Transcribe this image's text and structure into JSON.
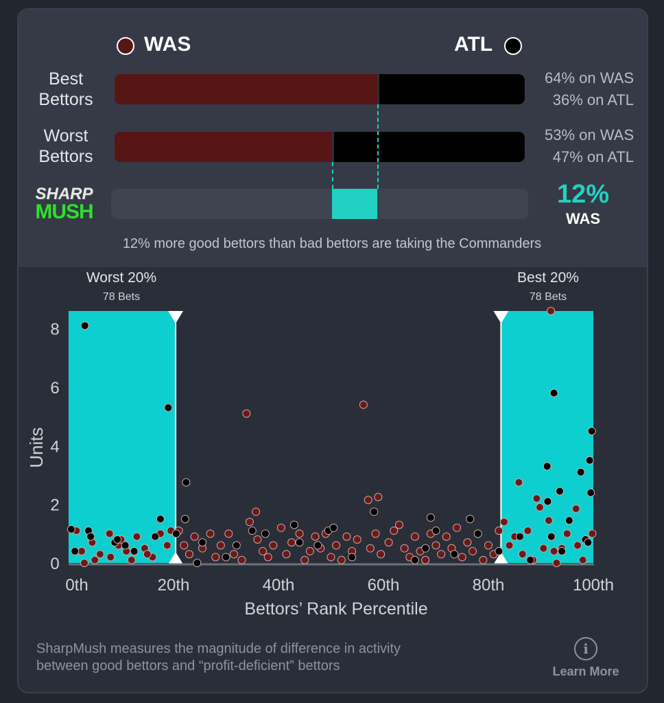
{
  "header": {
    "team_left": "WAS",
    "team_right": "ATL",
    "team_left_color": "#581516",
    "team_right_color": "#000000"
  },
  "rows": [
    {
      "label_line1": "Best",
      "label_line2": "Bettors",
      "left_pct": 64,
      "right_pct": 36,
      "left_text": "64% on WAS",
      "right_text": "36% on ATL"
    },
    {
      "label_line1": "Worst",
      "label_line2": "Bettors",
      "left_pct": 53,
      "right_pct": 47,
      "left_text": "53% on WAS",
      "right_text": "47% on ATL"
    }
  ],
  "sharpmush": {
    "logo_line1": "SHARP",
    "logo_line2": "MUSH",
    "value": "12%",
    "team": "WAS",
    "diff": 12,
    "accent": "#22d1c2"
  },
  "summary": "12% more good bettors than bad bettors are taking the Commanders",
  "chart_data": {
    "type": "scatter",
    "xlabel": "Bettors’ Rank Percentile",
    "ylabel": "Units",
    "xlim": [
      0,
      100
    ],
    "ylim": [
      0,
      8.6
    ],
    "xticks": [
      {
        "v": 0,
        "label": "0th"
      },
      {
        "v": 20,
        "label": "20th"
      },
      {
        "v": 40,
        "label": "40th"
      },
      {
        "v": 60,
        "label": "60th"
      },
      {
        "v": 80,
        "label": "80th"
      },
      {
        "v": 100,
        "label": "100th"
      }
    ],
    "yticks": [
      {
        "v": 0,
        "label": "0"
      },
      {
        "v": 2,
        "label": "2"
      },
      {
        "v": 4,
        "label": "4"
      },
      {
        "v": 6,
        "label": "6"
      },
      {
        "v": 8,
        "label": "8"
      }
    ],
    "bands": [
      {
        "from": 0,
        "to": 20.4,
        "title": "Worst 20%",
        "subtitle": "78 Bets"
      },
      {
        "from": 82.4,
        "to": 100,
        "title": "Best 20%",
        "subtitle": "78 Bets"
      }
    ],
    "series": [
      {
        "name": "WAS",
        "color": "#6b1a1a",
        "points": [
          [
            4.5,
            0.7
          ],
          [
            6,
            0.3
          ],
          [
            7.8,
            1.0
          ],
          [
            9.5,
            0.6
          ],
          [
            11,
            0.4
          ],
          [
            13,
            0.9
          ],
          [
            14.5,
            0.5
          ],
          [
            16,
            0.2
          ],
          [
            17.5,
            1.0
          ],
          [
            18.8,
            0.6
          ],
          [
            19.5,
            1.1
          ],
          [
            1.5,
            1.1
          ],
          [
            2.5,
            0.4
          ],
          [
            5,
            0.1
          ],
          [
            8,
            0.2
          ],
          [
            12,
            0.1
          ],
          [
            15,
            0.3
          ],
          [
            3,
            0.0
          ],
          [
            10,
            0.8
          ],
          [
            21,
            1.1
          ],
          [
            22,
            0.6
          ],
          [
            23,
            0.3
          ],
          [
            24,
            0.9
          ],
          [
            25.5,
            0.5
          ],
          [
            27,
            1.0
          ],
          [
            28,
            0.2
          ],
          [
            29,
            0.6
          ],
          [
            30.5,
            1.0
          ],
          [
            31.5,
            0.3
          ],
          [
            33,
            0.1
          ],
          [
            33.9,
            5.1
          ],
          [
            34.5,
            1.4
          ],
          [
            35.7,
            1.75
          ],
          [
            36,
            0.8
          ],
          [
            37,
            0.4
          ],
          [
            38,
            0.2
          ],
          [
            39,
            0.6
          ],
          [
            40.5,
            1.2
          ],
          [
            41.5,
            0.3
          ],
          [
            42.5,
            0.7
          ],
          [
            44,
            1.0
          ],
          [
            45,
            0.1
          ],
          [
            46,
            0.4
          ],
          [
            47,
            0.9
          ],
          [
            48,
            0.5
          ],
          [
            49,
            1.0
          ],
          [
            50,
            0.2
          ],
          [
            51,
            0.6
          ],
          [
            52,
            0.1
          ],
          [
            53,
            0.9
          ],
          [
            54,
            0.4
          ],
          [
            55,
            0.8
          ],
          [
            56.2,
            5.4
          ],
          [
            57.1,
            2.15
          ],
          [
            59,
            2.25
          ],
          [
            57.5,
            0.5
          ],
          [
            58.5,
            1.0
          ],
          [
            59.5,
            0.3
          ],
          [
            61,
            0.7
          ],
          [
            62,
            1.1
          ],
          [
            63,
            1.3
          ],
          [
            64,
            0.5
          ],
          [
            65,
            0.2
          ],
          [
            66,
            0.9
          ],
          [
            67,
            0.4
          ],
          [
            68,
            0.1
          ],
          [
            69,
            1.0
          ],
          [
            70,
            0.6
          ],
          [
            71,
            0.3
          ],
          [
            72,
            0.9
          ],
          [
            73,
            0.5
          ],
          [
            74,
            1.2
          ],
          [
            75,
            0.2
          ],
          [
            76,
            0.7
          ],
          [
            77,
            0.4
          ],
          [
            78,
            1.0
          ],
          [
            79,
            0.1
          ],
          [
            80,
            0.6
          ],
          [
            81,
            0.3
          ],
          [
            82,
            1.1
          ],
          [
            83,
            1.4
          ],
          [
            84,
            0.6
          ],
          [
            85,
            0.9
          ],
          [
            85.8,
            2.75
          ],
          [
            86.5,
            0.3
          ],
          [
            87.5,
            1.1
          ],
          [
            88.5,
            0.1
          ],
          [
            89.2,
            2.2
          ],
          [
            89.8,
            1.9
          ],
          [
            90.5,
            0.5
          ],
          [
            91.5,
            1.45
          ],
          [
            91.9,
            8.6
          ],
          [
            92.5,
            0.4
          ],
          [
            93,
            0.0
          ],
          [
            94,
            0.5
          ],
          [
            95,
            1.0
          ],
          [
            96.7,
            1.85
          ],
          [
            97,
            0.6
          ],
          [
            98,
            0.1
          ],
          [
            99.8,
            1.0
          ]
        ]
      },
      {
        "name": "ATL",
        "color": "#000000",
        "points": [
          [
            3.1,
            8.1
          ],
          [
            19,
            5.3
          ],
          [
            22.4,
            2.75
          ],
          [
            58.2,
            1.75
          ],
          [
            92.5,
            5.8
          ],
          [
            99.7,
            4.5
          ],
          [
            99.3,
            3.5
          ],
          [
            97.6,
            3.1
          ],
          [
            91.2,
            3.3
          ],
          [
            99.5,
            2.4
          ],
          [
            93.6,
            2.45
          ],
          [
            91.3,
            2.1
          ],
          [
            95.4,
            1.45
          ],
          [
            22.2,
            1.5
          ],
          [
            17.5,
            1.5
          ],
          [
            69,
            1.55
          ],
          [
            76.5,
            1.5
          ],
          [
            0.5,
            1.15
          ],
          [
            1.2,
            0.4
          ],
          [
            3.8,
            1.1
          ],
          [
            4.2,
            0.9
          ],
          [
            8.8,
            0.7
          ],
          [
            9.3,
            0.8
          ],
          [
            10.8,
            0.6
          ],
          [
            12.5,
            0.4
          ],
          [
            16.5,
            0.9
          ],
          [
            20.5,
            1.0
          ],
          [
            24.5,
            0.0
          ],
          [
            25.5,
            0.7
          ],
          [
            30,
            0.2
          ],
          [
            32,
            0.6
          ],
          [
            35,
            1.1
          ],
          [
            37.5,
            1.0
          ],
          [
            43,
            1.3
          ],
          [
            44,
            0.7
          ],
          [
            47.5,
            0.6
          ],
          [
            49.5,
            1.1
          ],
          [
            50.5,
            1.2
          ],
          [
            54,
            0.2
          ],
          [
            66,
            0.1
          ],
          [
            68,
            0.5
          ],
          [
            70,
            1.1
          ],
          [
            73.5,
            0.3
          ],
          [
            78,
            1.0
          ],
          [
            82,
            0.4
          ],
          [
            86,
            0.9
          ],
          [
            88,
            0.1
          ],
          [
            92,
            0.9
          ],
          [
            94,
            0.4
          ],
          [
            98.5,
            0.8
          ],
          [
            99,
            0.7
          ]
        ]
      }
    ]
  },
  "footer": {
    "text_line1": "SharpMush measures the magnitude of difference in activity",
    "text_line2": "between good bettors and “profit-deficient” bettors",
    "learn_more": "Learn More"
  }
}
